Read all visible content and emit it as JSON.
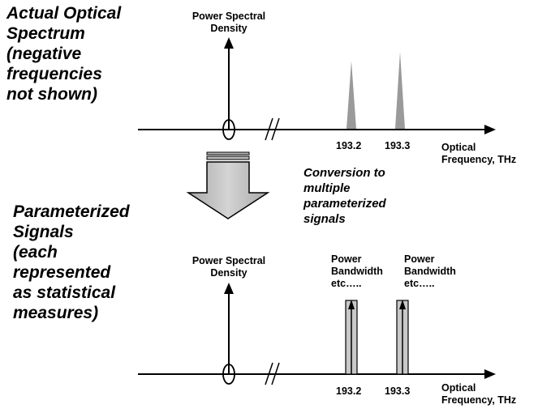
{
  "top": {
    "heading": "Actual Optical\nSpectrum\n(negative\nfrequencies\nnot shown)",
    "y_axis_label": "Power Spectral\nDensity",
    "freq_labels": [
      "193.2",
      "193.3"
    ],
    "x_axis_label": "Optical\nFrequency, THz"
  },
  "conversion": {
    "label": "Conversion to\nmultiple\nparameterized\nsignals"
  },
  "bottom": {
    "heading": "Parameterized\nSignals\n(each\nrepresented\nas statistical\nmeasures)",
    "y_axis_label": "Power Spectral\nDensity",
    "signal_labels": [
      "Power\nBandwidth\netc…..",
      "Power\nBandwidth\netc….."
    ],
    "freq_labels": [
      "193.2",
      "193.3"
    ],
    "x_axis_label": "Optical\nFrequency, THz"
  },
  "colors": {
    "ink": "#000000",
    "peak_fill": "#9a9a9a",
    "signal_fill": "#c8c8c8",
    "arrow_fill": "#c0c0c0"
  }
}
